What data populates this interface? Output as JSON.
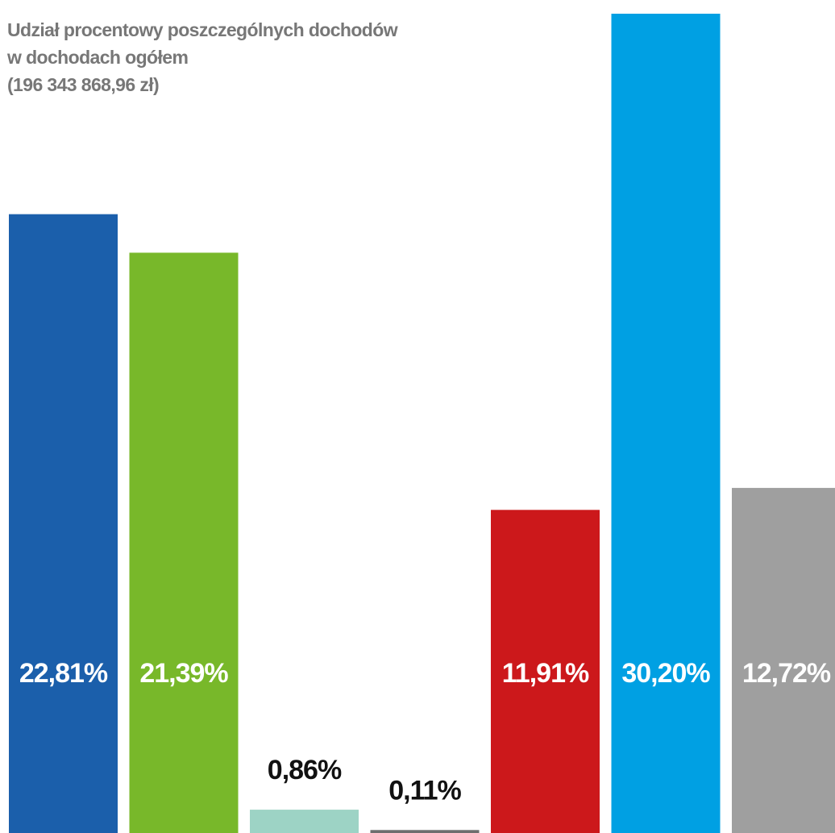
{
  "chart_data": {
    "type": "bar",
    "title": [
      "Udział procentowy poszczególnych dochodów",
      "w dochodach ogółem",
      "(196 343 868,96 zł)"
    ],
    "values": [
      22.81,
      21.39,
      0.86,
      0.11,
      11.91,
      30.2,
      12.72
    ],
    "data_labels": [
      "22,81%",
      "21,39%",
      "0,86%",
      "0,11%",
      "11,91%",
      "30,20%",
      "12,72%"
    ],
    "colors": [
      "#1b5fab",
      "#78b82a",
      "#9dd3c5",
      "#6e6e6e",
      "#cc181b",
      "#00a0e3",
      "#9f9f9f"
    ],
    "label_colors": [
      "#ffffff",
      "#ffffff",
      "#111111",
      "#111111",
      "#ffffff",
      "#ffffff",
      "#ffffff"
    ],
    "ylim": [
      0,
      30.2
    ],
    "grid": false,
    "legend": "none"
  }
}
